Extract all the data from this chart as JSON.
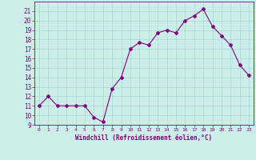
{
  "x": [
    0,
    1,
    2,
    3,
    4,
    5,
    6,
    7,
    8,
    9,
    10,
    11,
    12,
    13,
    14,
    15,
    16,
    17,
    18,
    19,
    20,
    21,
    22,
    23
  ],
  "y": [
    11,
    12,
    11,
    11,
    11,
    11,
    9.8,
    9.3,
    12.8,
    14.0,
    17.0,
    17.7,
    17.4,
    18.7,
    19.0,
    18.7,
    20.0,
    20.5,
    21.2,
    19.4,
    18.4,
    17.4,
    15.3,
    14.2
  ],
  "line_color": "#800080",
  "marker": "D",
  "marker_size": 2.0,
  "bg_color": "#cceee8",
  "grid_color": "#aadddd",
  "xlabel": "Windchill (Refroidissement éolien,°C)",
  "ylabel": "",
  "ylim": [
    9,
    22
  ],
  "xlim": [
    -0.5,
    23.5
  ],
  "yticks": [
    9,
    10,
    11,
    12,
    13,
    14,
    15,
    16,
    17,
    18,
    19,
    20,
    21
  ],
  "xticks": [
    0,
    1,
    2,
    3,
    4,
    5,
    6,
    7,
    8,
    9,
    10,
    11,
    12,
    13,
    14,
    15,
    16,
    17,
    18,
    19,
    20,
    21,
    22,
    23
  ],
  "tick_color": "#800080",
  "label_color": "#800080",
  "axis_color": "#800080"
}
